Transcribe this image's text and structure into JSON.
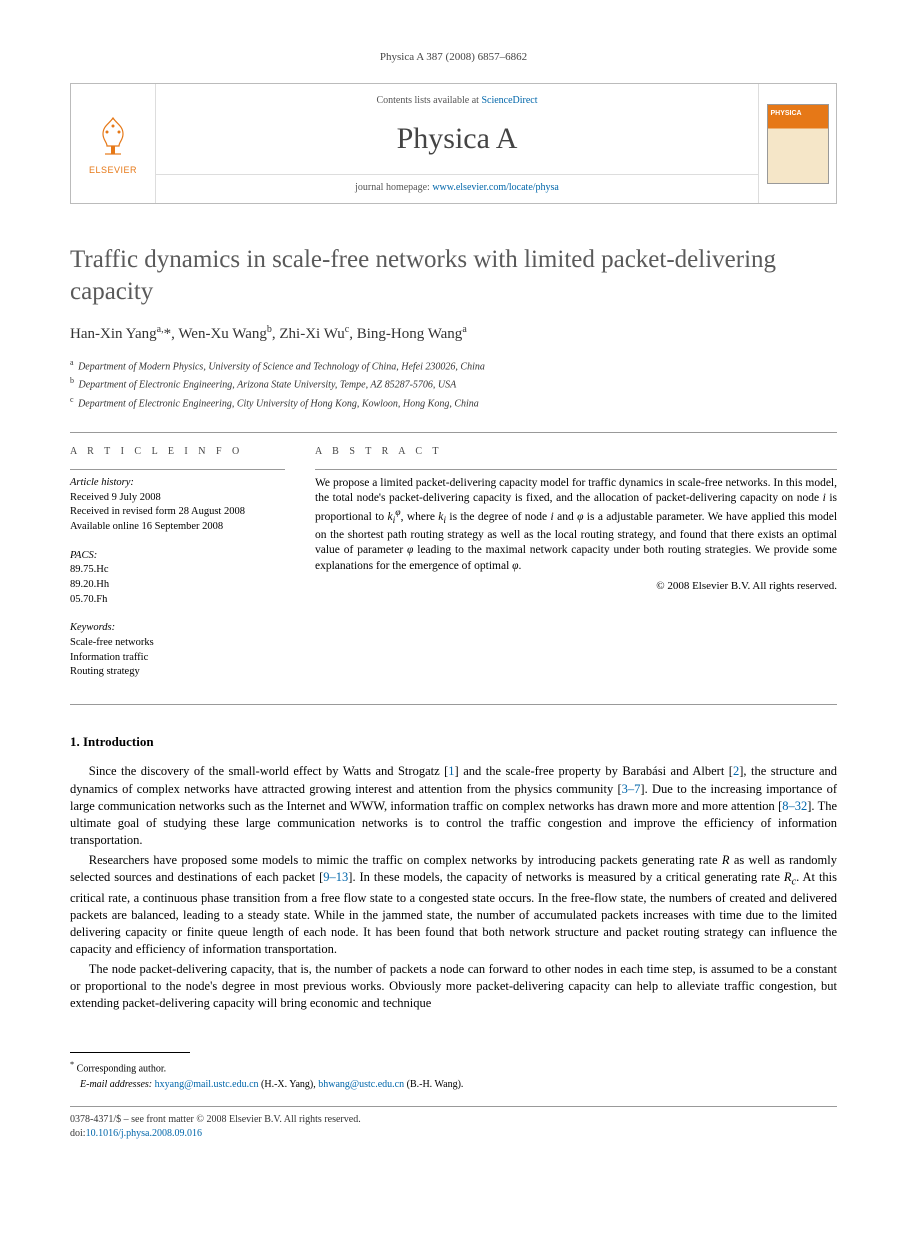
{
  "journal_ref": "Physica A 387 (2008) 6857–6862",
  "header": {
    "publisher": "ELSEVIER",
    "contents_prefix": "Contents lists available at ",
    "contents_link": "ScienceDirect",
    "journal_name": "Physica A",
    "homepage_prefix": "journal homepage: ",
    "homepage_url": "www.elsevier.com/locate/physa"
  },
  "title": "Traffic dynamics in scale-free networks with limited packet-delivering capacity",
  "authors_html": "Han-Xin Yang<sup>a,</sup>*, Wen-Xu Wang<sup>b</sup>, Zhi-Xi Wu<sup>c</sup>, Bing-Hong Wang<sup>a</sup>",
  "affiliations": [
    {
      "sup": "a",
      "text": "Department of Modern Physics, University of Science and Technology of China, Hefei 230026, China"
    },
    {
      "sup": "b",
      "text": "Department of Electronic Engineering, Arizona State University, Tempe, AZ 85287-5706, USA"
    },
    {
      "sup": "c",
      "text": "Department of Electronic Engineering, City University of Hong Kong, Kowloon, Hong Kong, China"
    }
  ],
  "article_info": {
    "heading": "A R T I C L E   I N F O",
    "history_label": "Article history:",
    "history": [
      "Received 9 July 2008",
      "Received in revised form 28 August 2008",
      "Available online 16 September 2008"
    ],
    "pacs_label": "PACS:",
    "pacs": [
      "89.75.Hc",
      "89.20.Hh",
      "05.70.Fh"
    ],
    "keywords_label": "Keywords:",
    "keywords": [
      "Scale-free networks",
      "Information traffic",
      "Routing strategy"
    ]
  },
  "abstract": {
    "heading": "A B S T R A C T",
    "text": "We propose a limited packet-delivering capacity model for traffic dynamics in scale-free networks. In this model, the total node's packet-delivering capacity is fixed, and the allocation of packet-delivering capacity on node i is proportional to k_i^φ, where k_i is the degree of node i and φ is a adjustable parameter. We have applied this model on the shortest path routing strategy as well as the local routing strategy, and found that there exists an optimal value of parameter φ leading to the maximal network capacity under both routing strategies. We provide some explanations for the emergence of optimal φ.",
    "copyright": "© 2008 Elsevier B.V. All rights reserved."
  },
  "section1": {
    "heading": "1. Introduction",
    "p1": "Since the discovery of the small-world effect by Watts and Strogatz [1] and the scale-free property by Barabási and Albert [2], the structure and dynamics of complex networks have attracted growing interest and attention from the physics community [3–7]. Due to the increasing importance of large communication networks such as the Internet and WWW, information traffic on complex networks has drawn more and more attention [8–32]. The ultimate goal of studying these large communication networks is to control the traffic congestion and improve the efficiency of information transportation.",
    "p2": "Researchers have proposed some models to mimic the traffic on complex networks by introducing packets generating rate R as well as randomly selected sources and destinations of each packet [9–13]. In these models, the capacity of networks is measured by a critical generating rate R_c. At this critical rate, a continuous phase transition from a free flow state to a congested state occurs. In the free-flow state, the numbers of created and delivered packets are balanced, leading to a steady state. While in the jammed state, the number of accumulated packets increases with time due to the limited delivering capacity or finite queue length of each node. It has been found that both network structure and packet routing strategy can influence the capacity and efficiency of information transportation.",
    "p3": "The node packet-delivering capacity, that is, the number of packets a node can forward to other nodes in each time step, is assumed to be a constant or proportional to the node's degree in most previous works. Obviously more packet-delivering capacity can help to alleviate traffic congestion, but extending packet-delivering capacity will bring economic and technique"
  },
  "footnotes": {
    "corresponding": "Corresponding author.",
    "email_label": "E-mail addresses:",
    "emails": [
      {
        "addr": "hxyang@mail.ustc.edu.cn",
        "who": "(H.-X. Yang),"
      },
      {
        "addr": "bhwang@ustc.edu.cn",
        "who": "(B.-H. Wang)."
      }
    ]
  },
  "bottom": {
    "issn": "0378-4371/$ – see front matter © 2008 Elsevier B.V. All rights reserved.",
    "doi_label": "doi:",
    "doi": "10.1016/j.physa.2008.09.016"
  },
  "colors": {
    "link": "#0066aa",
    "elsevier_orange": "#e67817",
    "text_gray": "#5a5a5a"
  }
}
